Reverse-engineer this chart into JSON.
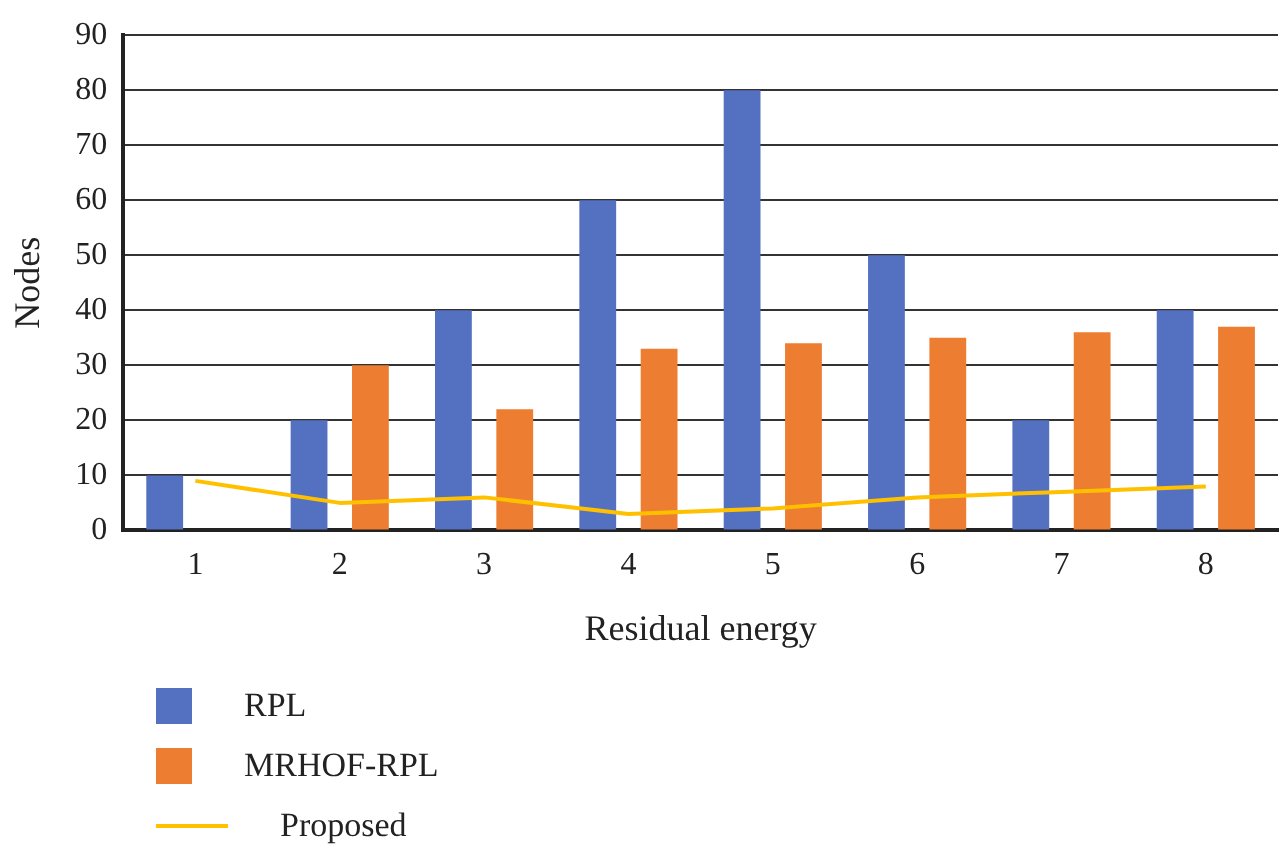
{
  "chart_data": {
    "type": "bar",
    "xlabel": "Residual energy",
    "ylabel": "Nodes",
    "categories": [
      "1",
      "2",
      "3",
      "4",
      "5",
      "6",
      "7",
      "8"
    ],
    "series": [
      {
        "name": "RPL",
        "color": "#5470c0",
        "values": [
          10,
          20,
          40,
          60,
          80,
          50,
          20,
          40
        ]
      },
      {
        "name": "MRHOF-RPL",
        "color": "#ed7d31",
        "values": [
          null,
          30,
          22,
          33,
          34,
          35,
          36,
          37
        ]
      },
      {
        "name": "Proposed",
        "type": "line",
        "color": "#ffc000",
        "values": [
          9,
          5,
          6,
          3,
          4,
          6,
          7,
          8
        ]
      }
    ],
    "ylim": [
      0,
      90
    ],
    "yticks": [
      0,
      10,
      20,
      30,
      40,
      50,
      60,
      70,
      80,
      90
    ],
    "grid": "y",
    "legend": "bottom left",
    "marker": "none"
  }
}
